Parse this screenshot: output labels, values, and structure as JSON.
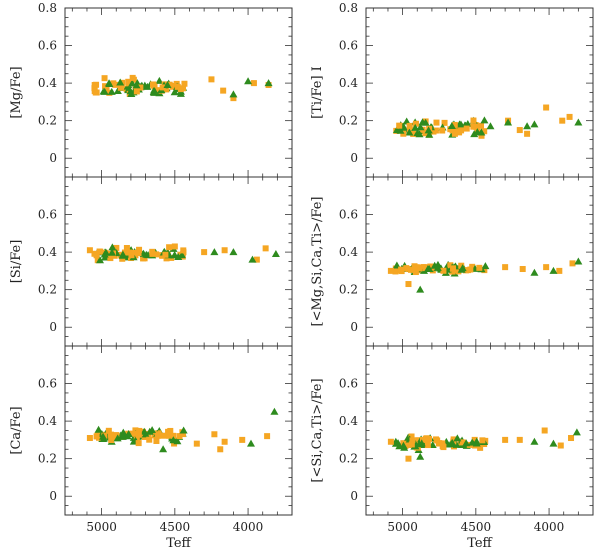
{
  "chart_data": {
    "type": "scatter",
    "layout": "3 rows x 2 columns, shared x-axis per column",
    "x_axis": {
      "label": "Teff",
      "range": [
        5250,
        3700
      ],
      "reversed": true,
      "ticks": [
        5000,
        4500,
        4000
      ]
    },
    "y_axis": {
      "range_top_row": [
        -0.1,
        0.8
      ],
      "range_lower_rows": [
        -0.1,
        0.8
      ],
      "ticks_top_row": [
        "0.8",
        "0.6",
        "0.4",
        "0.2",
        "0"
      ],
      "ticks_lower_rows": [
        "0.6",
        "0.4",
        "0.2",
        "0"
      ]
    },
    "colors": {
      "series_square": "#f5a623",
      "series_triangle": "#2e8b1e"
    },
    "panels": [
      {
        "id": "mg",
        "ylabel": "[Mg/Fe]",
        "y_center": 0.38,
        "spread": 0.04,
        "extra_points": [
          [
            5040,
            0.35,
            "s"
          ],
          [
            4480,
            0.38,
            "s"
          ],
          [
            4250,
            0.42,
            "s"
          ],
          [
            4170,
            0.36,
            "s"
          ],
          [
            4100,
            0.32,
            "s"
          ],
          [
            3960,
            0.4,
            "s"
          ],
          [
            3860,
            0.39,
            "s"
          ],
          [
            4000,
            0.41,
            "t"
          ],
          [
            3860,
            0.4,
            "t"
          ],
          [
            4100,
            0.34,
            "t"
          ],
          [
            4550,
            0.39,
            "t"
          ]
        ]
      },
      {
        "id": "ti",
        "ylabel": "[Ti/Fe] I",
        "y_center": 0.16,
        "spread": 0.05,
        "extra_points": [
          [
            4020,
            0.27,
            "s"
          ],
          [
            3860,
            0.22,
            "s"
          ],
          [
            4280,
            0.2,
            "s"
          ],
          [
            4200,
            0.15,
            "s"
          ],
          [
            4150,
            0.13,
            "s"
          ],
          [
            3910,
            0.2,
            "s"
          ],
          [
            4150,
            0.17,
            "t"
          ],
          [
            4100,
            0.18,
            "t"
          ],
          [
            3800,
            0.19,
            "t"
          ],
          [
            4400,
            0.17,
            "t"
          ],
          [
            4280,
            0.19,
            "t"
          ]
        ]
      },
      {
        "id": "si",
        "ylabel": "[Si/Fe]",
        "y_center": 0.39,
        "spread": 0.035,
        "extra_points": [
          [
            5080,
            0.41,
            "s"
          ],
          [
            4500,
            0.43,
            "s"
          ],
          [
            4300,
            0.4,
            "s"
          ],
          [
            4160,
            0.41,
            "s"
          ],
          [
            3940,
            0.36,
            "s"
          ],
          [
            3880,
            0.42,
            "s"
          ],
          [
            3970,
            0.36,
            "t"
          ],
          [
            3810,
            0.39,
            "t"
          ],
          [
            4230,
            0.4,
            "t"
          ],
          [
            4100,
            0.4,
            "t"
          ]
        ]
      },
      {
        "id": "mgsicati",
        "ylabel": "[<Mg,Si,Ca,Ti>/Fe]",
        "y_center": 0.31,
        "spread": 0.025,
        "extra_points": [
          [
            5080,
            0.3,
            "s"
          ],
          [
            4300,
            0.32,
            "s"
          ],
          [
            4180,
            0.31,
            "s"
          ],
          [
            4020,
            0.32,
            "s"
          ],
          [
            3930,
            0.3,
            "s"
          ],
          [
            3840,
            0.34,
            "s"
          ],
          [
            4960,
            0.23,
            "s"
          ],
          [
            3970,
            0.3,
            "t"
          ],
          [
            3800,
            0.35,
            "t"
          ],
          [
            4880,
            0.2,
            "t"
          ],
          [
            4100,
            0.29,
            "t"
          ]
        ]
      },
      {
        "id": "ca",
        "ylabel": "[Ca/Fe]",
        "y_center": 0.32,
        "spread": 0.035,
        "extra_points": [
          [
            5080,
            0.31,
            "s"
          ],
          [
            4350,
            0.28,
            "s"
          ],
          [
            4230,
            0.33,
            "s"
          ],
          [
            4160,
            0.29,
            "s"
          ],
          [
            4190,
            0.25,
            "s"
          ],
          [
            4040,
            0.3,
            "s"
          ],
          [
            3870,
            0.32,
            "s"
          ],
          [
            3980,
            0.28,
            "t"
          ],
          [
            3820,
            0.45,
            "t"
          ],
          [
            4580,
            0.25,
            "t"
          ],
          [
            4440,
            0.35,
            "t"
          ]
        ]
      },
      {
        "id": "sicati",
        "ylabel": "[<Si,Ca,Ti>/Fe]",
        "y_center": 0.28,
        "spread": 0.03,
        "extra_points": [
          [
            5080,
            0.29,
            "s"
          ],
          [
            4300,
            0.3,
            "s"
          ],
          [
            4200,
            0.3,
            "s"
          ],
          [
            4030,
            0.35,
            "s"
          ],
          [
            3920,
            0.27,
            "s"
          ],
          [
            3850,
            0.31,
            "s"
          ],
          [
            4960,
            0.2,
            "s"
          ],
          [
            3970,
            0.28,
            "t"
          ],
          [
            3810,
            0.34,
            "t"
          ],
          [
            4880,
            0.21,
            "t"
          ],
          [
            4100,
            0.29,
            "t"
          ]
        ]
      }
    ]
  }
}
